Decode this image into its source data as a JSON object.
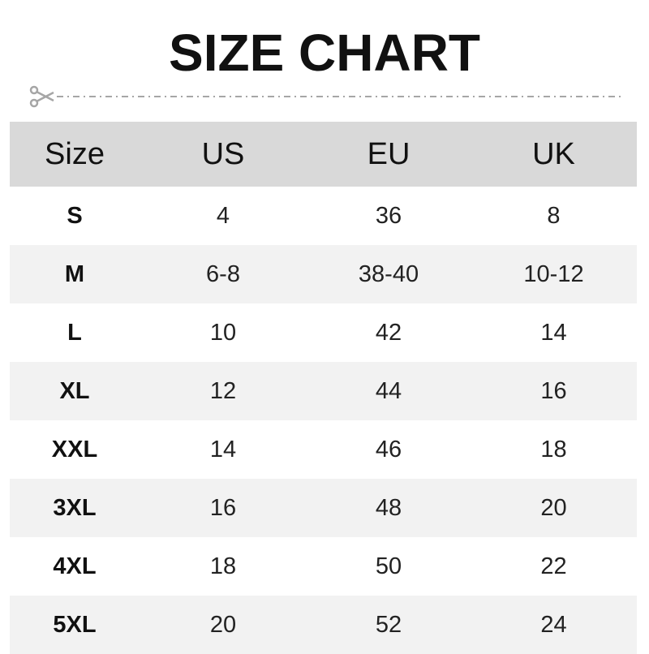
{
  "title": "SIZE CHART",
  "icons": {
    "cut": "scissors-icon"
  },
  "colors": {
    "header_bg": "#d9d9d9",
    "alt_row_bg": "#f2f2f2",
    "line": "#a6a6a6"
  },
  "table": {
    "headers": [
      "Size",
      "US",
      "EU",
      "UK"
    ],
    "rows": [
      [
        "S",
        "4",
        "36",
        "8"
      ],
      [
        "M",
        "6-8",
        "38-40",
        "10-12"
      ],
      [
        "L",
        "10",
        "42",
        "14"
      ],
      [
        "XL",
        "12",
        "44",
        "16"
      ],
      [
        "XXL",
        "14",
        "46",
        "18"
      ],
      [
        "3XL",
        "16",
        "48",
        "20"
      ],
      [
        "4XL",
        "18",
        "50",
        "22"
      ],
      [
        "5XL",
        "20",
        "52",
        "24"
      ]
    ]
  }
}
